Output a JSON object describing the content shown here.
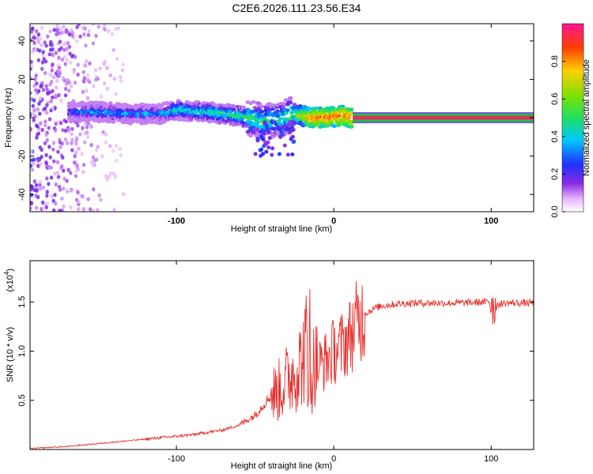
{
  "title": "C2E6.2026.111.23.56.E34",
  "top_panel": {
    "xlabel": "Height of straight line (km)",
    "ylabel": "Frequency (Hz)",
    "xlim": [
      -193,
      127
    ],
    "ylim": [
      -49,
      49
    ],
    "xticks": [
      -100,
      0,
      100
    ],
    "yticks": [
      -40,
      -20,
      0,
      20,
      40
    ],
    "colorbar": {
      "label": "Normalized spectral amplitude",
      "range": [
        0,
        1
      ],
      "ticks": [
        0.0,
        0.2,
        0.4,
        0.6,
        0.8
      ]
    }
  },
  "bottom_panel": {
    "xlabel": "Height of straight line (km)",
    "ylabel": "SNR (10 * v/v)",
    "exponent_label": "(x10",
    "exponent_power": "4",
    "exponent_close": ")",
    "xlim": [
      -193,
      127
    ],
    "ylim": [
      0,
      1.92
    ],
    "xticks": [
      -100,
      0,
      100
    ],
    "yticks": [
      0.5,
      1.0,
      1.5
    ]
  },
  "colors": {
    "line": "#e8302c",
    "band_center": "#e0305a",
    "band_edge": "#20c040"
  },
  "chart_data": [
    {
      "type": "heatmap",
      "title": "C2E6.2026.111.23.56.E34",
      "xlabel": "Height of straight line (km)",
      "ylabel": "Frequency (Hz)",
      "x_range": [
        -193,
        127
      ],
      "y_range": [
        -49,
        49
      ],
      "description_points": {
        "x": [
          -168,
          -150,
          -130,
          -110,
          -100,
          -80,
          -60,
          -45,
          -35,
          -25,
          -15,
          -5,
          5,
          12,
          40,
          80,
          127
        ],
        "peak_frequency_hz": [
          3,
          3,
          2,
          2,
          4,
          3,
          1,
          -2,
          -1,
          2,
          0,
          0,
          1,
          0,
          0,
          0,
          0
        ],
        "amplitude": [
          0.3,
          0.35,
          0.35,
          0.35,
          0.45,
          0.45,
          0.5,
          0.5,
          0.45,
          0.55,
          0.85,
          0.85,
          0.85,
          0.9,
          1.0,
          1.0,
          1.0
        ]
      }
    },
    {
      "type": "line",
      "xlabel": "Height of straight line (km)",
      "ylabel": "SNR (10 * v/v) (x10^4)",
      "x": [
        -193,
        -170,
        -150,
        -130,
        -110,
        -90,
        -70,
        -60,
        -50,
        -45,
        -40,
        -35,
        -30,
        -25,
        -20,
        -17,
        -15,
        -12,
        -10,
        -5,
        0,
        5,
        10,
        15,
        20,
        25,
        30,
        40,
        50,
        60,
        80,
        95,
        100,
        102,
        105,
        110,
        127
      ],
      "y": [
        0.01,
        0.03,
        0.06,
        0.09,
        0.12,
        0.15,
        0.2,
        0.25,
        0.35,
        0.45,
        0.55,
        0.6,
        0.7,
        0.8,
        0.9,
        1.1,
        0.7,
        0.9,
        0.85,
        0.9,
        1.0,
        1.05,
        1.15,
        1.3,
        1.38,
        1.43,
        1.46,
        1.48,
        1.49,
        1.49,
        1.49,
        1.5,
        1.5,
        1.4,
        1.48,
        1.49,
        1.49
      ],
      "ylim": [
        0,
        1.92
      ],
      "xlim": [
        -193,
        127
      ]
    }
  ]
}
